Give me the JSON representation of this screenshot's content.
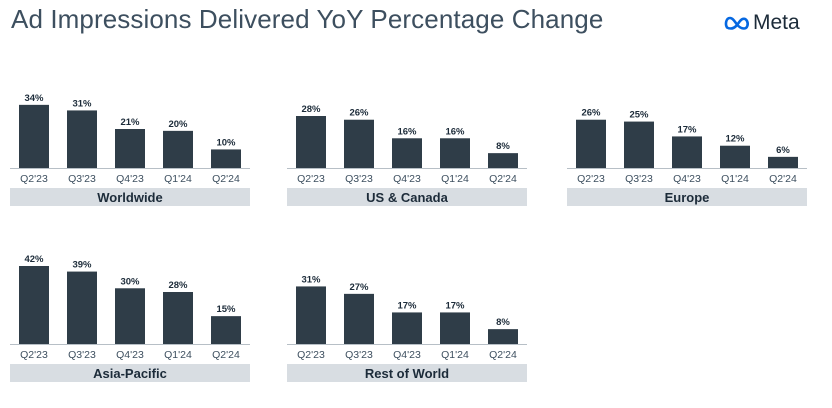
{
  "header": {
    "title": "Ad Impressions Delivered YoY Percentage Change",
    "logo_text": "Meta",
    "logo_icon": "meta-infinity-logo",
    "logo_color": "#0668e1"
  },
  "chart_data": [
    {
      "type": "bar",
      "title": "Worldwide",
      "categories": [
        "Q2'23",
        "Q3'23",
        "Q4'23",
        "Q1'24",
        "Q2'24"
      ],
      "values": [
        34,
        31,
        21,
        20,
        10
      ],
      "labels": [
        "34%",
        "31%",
        "21%",
        "20%",
        "10%"
      ],
      "ylim": [
        0,
        42
      ],
      "grid": false,
      "bar_color": "#2f3d48"
    },
    {
      "type": "bar",
      "title": "US & Canada",
      "categories": [
        "Q2'23",
        "Q3'23",
        "Q4'23",
        "Q1'24",
        "Q2'24"
      ],
      "values": [
        28,
        26,
        16,
        16,
        8
      ],
      "labels": [
        "28%",
        "26%",
        "16%",
        "16%",
        "8%"
      ],
      "ylim": [
        0,
        42
      ],
      "grid": false,
      "bar_color": "#2f3d48"
    },
    {
      "type": "bar",
      "title": "Europe",
      "categories": [
        "Q2'23",
        "Q3'23",
        "Q4'23",
        "Q1'24",
        "Q2'24"
      ],
      "values": [
        26,
        25,
        17,
        12,
        6
      ],
      "labels": [
        "26%",
        "25%",
        "17%",
        "12%",
        "6%"
      ],
      "ylim": [
        0,
        42
      ],
      "grid": false,
      "bar_color": "#2f3d48"
    },
    {
      "type": "bar",
      "title": "Asia-Pacific",
      "categories": [
        "Q2'23",
        "Q3'23",
        "Q4'23",
        "Q1'24",
        "Q2'24"
      ],
      "values": [
        42,
        39,
        30,
        28,
        15
      ],
      "labels": [
        "42%",
        "39%",
        "30%",
        "28%",
        "15%"
      ],
      "ylim": [
        0,
        42
      ],
      "grid": false,
      "bar_color": "#2f3d48"
    },
    {
      "type": "bar",
      "title": "Rest of World",
      "categories": [
        "Q2'23",
        "Q3'23",
        "Q4'23",
        "Q1'24",
        "Q2'24"
      ],
      "values": [
        31,
        27,
        17,
        17,
        8
      ],
      "labels": [
        "31%",
        "27%",
        "17%",
        "17%",
        "8%"
      ],
      "ylim": [
        0,
        42
      ],
      "grid": false,
      "bar_color": "#2f3d48"
    }
  ]
}
